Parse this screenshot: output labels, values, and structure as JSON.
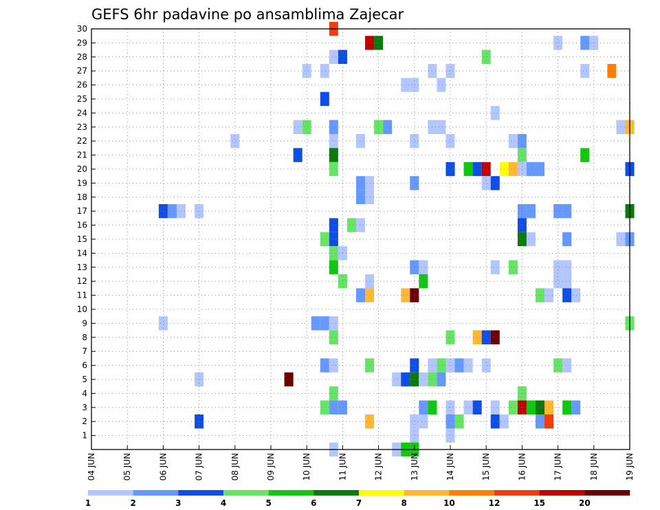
{
  "chart_data": {
    "type": "heatmap",
    "title": "GEFS 6hr padavine po ansamblima Zajecar",
    "y_labels": [
      "1",
      "2",
      "3",
      "4",
      "5",
      "6",
      "7",
      "8",
      "9",
      "10",
      "11",
      "12",
      "13",
      "14",
      "15",
      "16",
      "17",
      "18",
      "19",
      "20",
      "21",
      "22",
      "23",
      "24",
      "25",
      "26",
      "27",
      "28",
      "29",
      "30"
    ],
    "x_labels": [
      "04 JUN",
      "05 JUN",
      "06 JUN",
      "07 JUN",
      "08 JUN",
      "09 JUN",
      "10 JUN",
      "11 JUN",
      "12 JUN",
      "13 JUN",
      "14 JUN",
      "15 JUN",
      "16 JUN",
      "17 JUN",
      "18 JUN",
      "19 JUN"
    ],
    "x_unit": "day (June)",
    "xlim": [
      4,
      19
    ],
    "ylim": [
      0,
      30
    ],
    "grid": true,
    "colorbar": {
      "placement": "bottom",
      "labels": [
        "1",
        "2",
        "3",
        "4",
        "5",
        "6",
        "7",
        "8",
        "10",
        "12",
        "15",
        "20"
      ],
      "colors": [
        "#b3c6ff",
        "#6699ff",
        "#0e4ee6",
        "#66e466",
        "#11c711",
        "#0a7a0a",
        "#ffff00",
        "#ffb833",
        "#ff8000",
        "#ef3d0e",
        "#c20000",
        "#6b0000"
      ]
    },
    "cells": [
      [
        10.75,
        30,
        9
      ],
      [
        11.75,
        29,
        10
      ],
      [
        12.0,
        29,
        5
      ],
      [
        17.0,
        29,
        0
      ],
      [
        17.75,
        29,
        1
      ],
      [
        18.0,
        29,
        0
      ],
      [
        10.75,
        28,
        0
      ],
      [
        11.0,
        28,
        2
      ],
      [
        15.0,
        28,
        3
      ],
      [
        10.0,
        27,
        0
      ],
      [
        10.5,
        27,
        0
      ],
      [
        13.5,
        27,
        0
      ],
      [
        14.0,
        27,
        0
      ],
      [
        17.75,
        27,
        0
      ],
      [
        18.5,
        27,
        8
      ],
      [
        12.75,
        26,
        0
      ],
      [
        13.0,
        26,
        0
      ],
      [
        13.75,
        26,
        0
      ],
      [
        10.5,
        25,
        2
      ],
      [
        15.25,
        24,
        0
      ],
      [
        9.75,
        23,
        0
      ],
      [
        10.0,
        23,
        3
      ],
      [
        10.75,
        23,
        1
      ],
      [
        12.0,
        23,
        3
      ],
      [
        12.25,
        23,
        1
      ],
      [
        13.5,
        23,
        0
      ],
      [
        13.75,
        23,
        0
      ],
      [
        18.75,
        23,
        0
      ],
      [
        19.0,
        23,
        7
      ],
      [
        8.0,
        22,
        0
      ],
      [
        10.75,
        22,
        0
      ],
      [
        11.5,
        22,
        0
      ],
      [
        13.0,
        22,
        0
      ],
      [
        14.0,
        22,
        0
      ],
      [
        15.75,
        22,
        0
      ],
      [
        16.0,
        22,
        1
      ],
      [
        9.75,
        21,
        2
      ],
      [
        10.75,
        21,
        5
      ],
      [
        16.0,
        21,
        3
      ],
      [
        17.75,
        21,
        4
      ],
      [
        10.75,
        20,
        3
      ],
      [
        14.0,
        20,
        2
      ],
      [
        14.5,
        20,
        4
      ],
      [
        14.75,
        20,
        2
      ],
      [
        15.0,
        20,
        10
      ],
      [
        15.5,
        20,
        6
      ],
      [
        15.75,
        20,
        7
      ],
      [
        16.0,
        20,
        0
      ],
      [
        16.25,
        20,
        1
      ],
      [
        16.5,
        20,
        1
      ],
      [
        19.0,
        20,
        2
      ],
      [
        11.5,
        19,
        1
      ],
      [
        11.75,
        19,
        0
      ],
      [
        13.0,
        19,
        1
      ],
      [
        15.0,
        19,
        0
      ],
      [
        15.25,
        19,
        2
      ],
      [
        11.5,
        18,
        1
      ],
      [
        11.75,
        18,
        0
      ],
      [
        6.0,
        17,
        2
      ],
      [
        6.25,
        17,
        1
      ],
      [
        6.5,
        17,
        0
      ],
      [
        7.0,
        17,
        0
      ],
      [
        16.0,
        17,
        1
      ],
      [
        16.25,
        17,
        1
      ],
      [
        17.0,
        17,
        1
      ],
      [
        17.25,
        17,
        1
      ],
      [
        19.0,
        17,
        5
      ],
      [
        10.75,
        16,
        2
      ],
      [
        11.25,
        16,
        3
      ],
      [
        11.5,
        16,
        0
      ],
      [
        16.0,
        16,
        2
      ],
      [
        10.5,
        15,
        3
      ],
      [
        10.75,
        15,
        2
      ],
      [
        16.0,
        15,
        5
      ],
      [
        16.25,
        15,
        0
      ],
      [
        17.25,
        15,
        1
      ],
      [
        18.75,
        15,
        0
      ],
      [
        19.0,
        15,
        1
      ],
      [
        10.75,
        14,
        3
      ],
      [
        11.0,
        14,
        0
      ],
      [
        10.75,
        13,
        4
      ],
      [
        13.0,
        13,
        1
      ],
      [
        13.25,
        13,
        0
      ],
      [
        15.25,
        13,
        0
      ],
      [
        15.75,
        13,
        3
      ],
      [
        17.0,
        13,
        0
      ],
      [
        17.25,
        13,
        0
      ],
      [
        11.0,
        12,
        3
      ],
      [
        11.75,
        12,
        0
      ],
      [
        13.25,
        12,
        4
      ],
      [
        17.0,
        12,
        0
      ],
      [
        17.25,
        12,
        0
      ],
      [
        11.5,
        11,
        1
      ],
      [
        11.75,
        11,
        7
      ],
      [
        12.75,
        11,
        7
      ],
      [
        13.0,
        11,
        11
      ],
      [
        16.5,
        11,
        3
      ],
      [
        16.75,
        11,
        0
      ],
      [
        17.25,
        11,
        2
      ],
      [
        17.5,
        11,
        0
      ],
      [
        6.0,
        9,
        0
      ],
      [
        10.25,
        9,
        1
      ],
      [
        10.5,
        9,
        1
      ],
      [
        10.75,
        9,
        0
      ],
      [
        19.0,
        9,
        3
      ],
      [
        10.75,
        8,
        3
      ],
      [
        14.0,
        8,
        3
      ],
      [
        14.75,
        8,
        7
      ],
      [
        15.0,
        8,
        2
      ],
      [
        15.25,
        8,
        11
      ],
      [
        10.5,
        6,
        1
      ],
      [
        10.75,
        6,
        0
      ],
      [
        11.75,
        6,
        3
      ],
      [
        13.0,
        6,
        2
      ],
      [
        13.5,
        6,
        0
      ],
      [
        13.75,
        6,
        3
      ],
      [
        14.0,
        6,
        0
      ],
      [
        14.25,
        6,
        1
      ],
      [
        14.5,
        6,
        0
      ],
      [
        15.0,
        6,
        0
      ],
      [
        17.0,
        6,
        3
      ],
      [
        17.25,
        6,
        0
      ],
      [
        7.0,
        5,
        0
      ],
      [
        9.5,
        5,
        11
      ],
      [
        12.5,
        5,
        0
      ],
      [
        12.75,
        5,
        2
      ],
      [
        13.0,
        5,
        5
      ],
      [
        13.25,
        5,
        0
      ],
      [
        13.5,
        5,
        3
      ],
      [
        13.75,
        5,
        1
      ],
      [
        10.75,
        4,
        3
      ],
      [
        16.0,
        4,
        3
      ],
      [
        10.5,
        3,
        3
      ],
      [
        10.75,
        3,
        1
      ],
      [
        11.0,
        3,
        1
      ],
      [
        13.25,
        3,
        1
      ],
      [
        13.5,
        3,
        4
      ],
      [
        14.0,
        3,
        0
      ],
      [
        14.5,
        3,
        0
      ],
      [
        14.75,
        3,
        2
      ],
      [
        15.25,
        3,
        0
      ],
      [
        15.75,
        3,
        3
      ],
      [
        16.0,
        3,
        10
      ],
      [
        16.25,
        3,
        4
      ],
      [
        16.5,
        3,
        5
      ],
      [
        16.75,
        3,
        7
      ],
      [
        17.25,
        3,
        4
      ],
      [
        17.5,
        3,
        1
      ],
      [
        7.0,
        2,
        2
      ],
      [
        11.75,
        2,
        7
      ],
      [
        13.0,
        2,
        0
      ],
      [
        13.25,
        2,
        0
      ],
      [
        14.0,
        2,
        1
      ],
      [
        14.25,
        2,
        3
      ],
      [
        15.25,
        2,
        2
      ],
      [
        15.5,
        2,
        0
      ],
      [
        16.5,
        2,
        1
      ],
      [
        16.75,
        2,
        9
      ],
      [
        13.0,
        1,
        0
      ],
      [
        14.0,
        1,
        0
      ],
      [
        13.0,
        0,
        0
      ],
      [
        10.75,
        0,
        0
      ],
      [
        12.5,
        0,
        0
      ],
      [
        12.75,
        0,
        4
      ],
      [
        13.0,
        0,
        4
      ]
    ]
  }
}
